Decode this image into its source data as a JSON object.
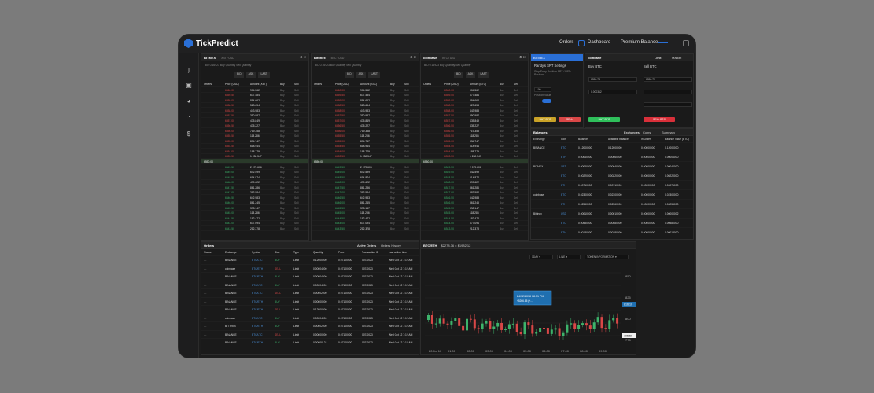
{
  "app": {
    "name": "TickPredict",
    "nav": [
      "Orders",
      "Dashboard",
      "Premium Balance"
    ]
  },
  "books": [
    {
      "exchange": "BITMEX",
      "pair": "XBT / USD",
      "tabs": [
        "BID",
        "ASK",
        "LAST"
      ],
      "cols": [
        "Orders",
        "Price (USD)",
        "Amount (XBT)",
        "Buy",
        "Sell"
      ],
      "mid": "6550.00"
    },
    {
      "exchange": "Bitfinex",
      "pair": "BTC / USD",
      "tabs": [
        "BID",
        "ASK",
        "LAST"
      ],
      "cols": [
        "Orders",
        "Price (USD)",
        "Amount (BTC)",
        "Buy",
        "Sell"
      ],
      "mid": "6550.00"
    },
    {
      "exchange": "coinbase",
      "pair": "BTC / USD",
      "tabs": [
        "BID",
        "ASK",
        "LAST"
      ],
      "cols": [
        "Orders",
        "Price (USD)",
        "Amount (BTC)",
        "Buy",
        "Sell"
      ],
      "mid": "6550.00"
    }
  ],
  "ask_amounts": [
    "904.562",
    "677.484",
    "894.662",
    "523.654",
    "443.983",
    "350.987",
    "435.849",
    "435.227",
    "719.358",
    "118.286",
    "834.747",
    "618.944",
    "188.779",
    "1 280.547"
  ],
  "bid_amounts": [
    "2 079.606",
    "642.599",
    "614.874",
    "499.622",
    "861.286",
    "383.584",
    "642.983",
    "861.245",
    "398.147",
    "118.286",
    "182.472",
    "677.094",
    "212.378"
  ],
  "srt": {
    "title": "Randy's SRT Settings",
    "buy": "BUY BTC",
    "sell": "SELL"
  },
  "trade": {
    "exchange": "coinbase",
    "buy_title": "Buy BTC",
    "sell_title": "Sell BTC",
    "tabs": [
      "Limit",
      "Market"
    ],
    "buy_price": "6550.73",
    "buy_amount": "0.000312",
    "sell_price": "6550.73",
    "buy_btn": "BUY BTC",
    "sell_btn": "SELL BTC"
  },
  "balances": {
    "title": "Balances",
    "tabs": [
      "Exchanges",
      "Coins",
      "Summary"
    ],
    "cols": [
      "Exchange",
      "Coin",
      "Balance",
      "Available balance",
      "In Order",
      "Balance Value (BTC)"
    ]
  },
  "bal_rows": [
    [
      "BINANCE",
      "BTC",
      "0.12000000",
      "0.12000000",
      "0.00000000",
      "0.12000000"
    ],
    [
      "",
      "ETH",
      "0.00060000",
      "0.00060000",
      "0.00000000",
      "0.00006000"
    ],
    [
      "BITMEX",
      "XBT",
      "0.00040000",
      "0.00040000",
      "0.00000000",
      "0.00040000"
    ],
    [
      "",
      "BTC",
      "0.00220000",
      "0.00220000",
      "0.00000000",
      "0.00220000"
    ],
    [
      "",
      "ETH",
      "0.00710000",
      "0.00710000",
      "0.00000000",
      "0.00071000"
    ],
    [
      "coinbase",
      "BTC",
      "0.02300000",
      "0.02300000",
      "0.00000000",
      "0.02300000"
    ],
    [
      "",
      "ETH",
      "0.02560000",
      "0.02560000",
      "0.00000000",
      "0.00256000"
    ],
    [
      "Bitfinex",
      "USD",
      "0.00010000",
      "0.00010000",
      "0.00000000",
      "0.00000002"
    ],
    [
      "",
      "BTC",
      "0.00580000",
      "0.00580000",
      "0.00000000",
      "0.00580000"
    ],
    [
      "",
      "ETH",
      "0.00180000",
      "0.00180000",
      "0.00000000",
      "0.00018000"
    ]
  ],
  "orders": {
    "title": "Orders",
    "tabs": [
      "Active Orders",
      "Orders History"
    ],
    "cols": [
      "Status",
      "Exchange",
      "Symbol",
      "Side",
      "Type",
      "Quantity",
      "Price",
      "Transaction ID",
      "Last action time"
    ]
  },
  "order_rows": [
    [
      "BINANCE",
      "BTC/LTC",
      "BUY",
      "Limit",
      "0.12000000",
      "0.07100000",
      "007/0023",
      "Wed Oct 12 7:12 AM"
    ],
    [
      "coinbase",
      "BTC/ETH",
      "SELL",
      "Limit",
      "0.00004000",
      "0.07100000",
      "007/0023",
      "Wed Oct 12 7:12 AM"
    ],
    [
      "BINANCE",
      "BTC/ETH",
      "BUY",
      "Limit",
      "0.00004000",
      "0.07100000",
      "007/0023",
      "Wed Oct 12 7:12 AM"
    ],
    [
      "BINANCE",
      "BTC/LTC",
      "BUY",
      "Limit",
      "0.00004000",
      "0.07100000",
      "007/0023",
      "Wed Oct 12 7:12 AM"
    ],
    [
      "BINANCE",
      "BTC/LTC",
      "SELL",
      "Limit",
      "0.00002000",
      "0.07100000",
      "007/0023",
      "Wed Oct 12 7:12 AM"
    ],
    [
      "BINANCE",
      "BTC/ETH",
      "BUY",
      "Limit",
      "0.00600000",
      "0.07100000",
      "007/0023",
      "Wed Oct 12 7:12 AM"
    ],
    [
      "BINANCE",
      "BTC/ETH",
      "SELL",
      "Limit",
      "0.12000000",
      "0.07100000",
      "007/0023",
      "Wed Oct 12 7:12 AM"
    ],
    [
      "coinbase",
      "BTC/LTC",
      "BUY",
      "Limit",
      "0.00004000",
      "0.07100000",
      "007/0023",
      "Wed Oct 12 7:12 AM"
    ],
    [
      "BITTREX",
      "BTC/ETH",
      "BUY",
      "Limit",
      "0.00002000",
      "0.07100000",
      "007/0023",
      "Wed Oct 12 7:12 AM"
    ],
    [
      "BINANCE",
      "BTC/LTC",
      "SELL",
      "Limit",
      "0.00600000",
      "0.07100000",
      "007/0023",
      "Wed Oct 12 7:12 AM"
    ],
    [
      "BINANCE",
      "BTC/ETH",
      "BUY",
      "Limit",
      "0.00000124",
      "0.07100000",
      "007/0023",
      "Wed Oct 12 7:12 AM"
    ]
  ],
  "chart": {
    "pair": "BTC/ETH",
    "price": "$2278.36 = $1982.12",
    "selects": [
      "1DAY",
      "LINE",
      "TOKEN INFORMATION"
    ],
    "tooltip_date": "24/12/2018 08:51 PM",
    "tooltip_val": "+5266.85 (+...)",
    "times": [
      "20:Jul 10",
      "01:00",
      "02:00",
      "03:00",
      "04:00",
      "05:00",
      "06:00",
      "07:00",
      "08:00",
      "09:00"
    ],
    "prices": [
      "850",
      "825",
      "800",
      "775"
    ],
    "last": "816.10",
    "ref": "795.50"
  }
}
